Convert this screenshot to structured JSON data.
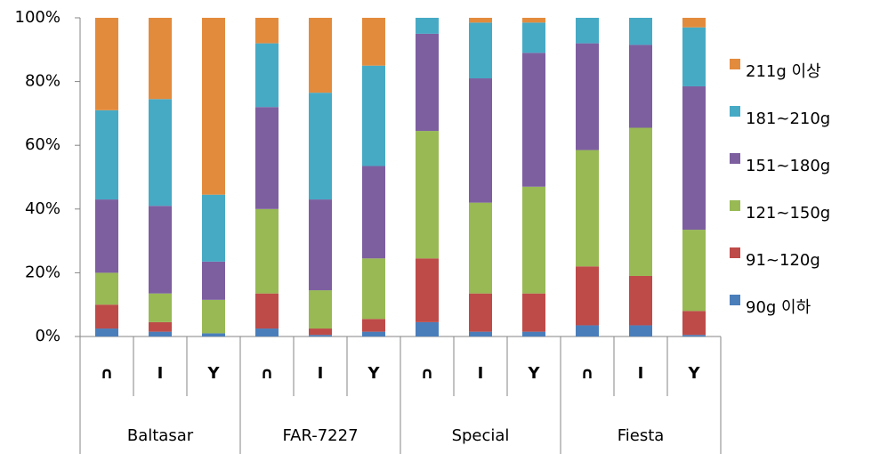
{
  "chart_data": {
    "type": "stacked_bar_100",
    "categories": [
      "∩",
      "I",
      "Y",
      "∩",
      "I",
      "Y",
      "∩",
      "I",
      "Y",
      "∩",
      "I",
      "Y"
    ],
    "groups": [
      "Baltasar",
      "FAR-7227",
      "Special",
      "Fiesta"
    ],
    "series": [
      {
        "name": "90g 이하",
        "color": "#4a7ebb",
        "values": [
          2.5,
          1.5,
          1,
          2.5,
          0.5,
          1.5,
          4.5,
          1.5,
          1.5,
          3.5,
          3.5,
          0.5
        ]
      },
      {
        "name": "91~120g",
        "color": "#be4b48",
        "values": [
          7.5,
          3,
          0,
          11,
          2,
          4,
          20,
          12,
          12,
          18.5,
          15.5,
          7.5
        ]
      },
      {
        "name": "121~150g",
        "color": "#98b954",
        "values": [
          10,
          9,
          10.5,
          26.5,
          12,
          19,
          40,
          28.5,
          33.5,
          36.5,
          46.5,
          25.5
        ]
      },
      {
        "name": "151~180g",
        "color": "#7d5fa0",
        "values": [
          23,
          27.5,
          12,
          32,
          28.5,
          29,
          30.5,
          39,
          42,
          33.5,
          26,
          45
        ]
      },
      {
        "name": "181~210g",
        "color": "#46aac5",
        "values": [
          28,
          33.5,
          21,
          20,
          33.5,
          31.5,
          5,
          17.5,
          9.5,
          8,
          8.5,
          18.5
        ]
      },
      {
        "name": "211g 이상",
        "color": "#e38b3d",
        "values": [
          29,
          25.5,
          55.5,
          8,
          23.5,
          15,
          0,
          1.5,
          1.5,
          0,
          0,
          3
        ]
      }
    ],
    "ylim": [
      0,
      100
    ],
    "yticks": [
      {
        "value": 0,
        "label": "0%"
      },
      {
        "value": 20,
        "label": "20%"
      },
      {
        "value": 40,
        "label": "40%"
      },
      {
        "value": 60,
        "label": "60%"
      },
      {
        "value": 80,
        "label": "80%"
      },
      {
        "value": 100,
        "label": "100%"
      }
    ],
    "legend": "right"
  }
}
